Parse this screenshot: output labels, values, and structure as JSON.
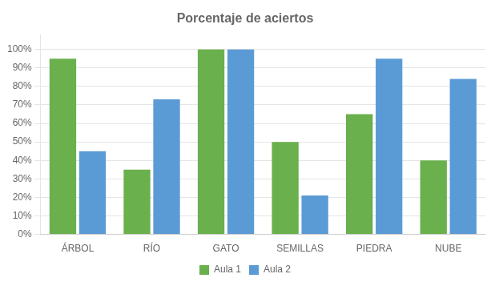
{
  "chart_data": {
    "type": "bar",
    "title": "Porcentaje de aciertos",
    "categories": [
      "ÁRBOL",
      "RÍO",
      "GATO",
      "SEMILLAS",
      "PIEDRA",
      "NUBE"
    ],
    "series": [
      {
        "name": "Aula 1",
        "color": "#6ab04c",
        "values": [
          0.95,
          0.35,
          1.0,
          0.5,
          0.65,
          0.4
        ]
      },
      {
        "name": "Aula 2",
        "color": "#5b9bd5",
        "values": [
          0.45,
          0.73,
          1.0,
          0.21,
          0.95,
          0.84
        ]
      }
    ],
    "ylim": [
      0,
      1.08
    ],
    "yticks": [
      {
        "value": 0.0,
        "label": "0%"
      },
      {
        "value": 0.1,
        "label": "10%"
      },
      {
        "value": 0.2,
        "label": "20%"
      },
      {
        "value": 0.3,
        "label": "30%"
      },
      {
        "value": 0.4,
        "label": "40%"
      },
      {
        "value": 0.5,
        "label": "50%"
      },
      {
        "value": 0.6,
        "label": "60%"
      },
      {
        "value": 0.7,
        "label": "70%"
      },
      {
        "value": 0.8,
        "label": "80%"
      },
      {
        "value": 0.9,
        "label": "90%"
      },
      {
        "value": 1.0,
        "label": "100%"
      }
    ],
    "grid": true,
    "legend": "bottom"
  }
}
